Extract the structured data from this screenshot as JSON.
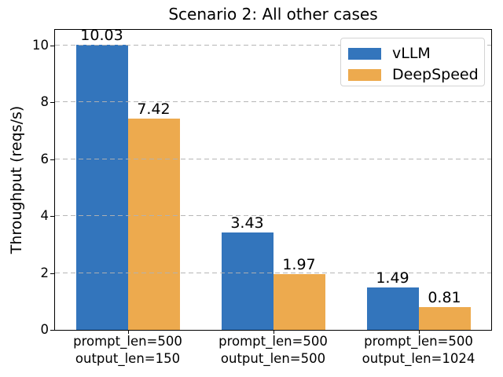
{
  "chart_data": {
    "type": "bar",
    "title": "Scenario 2: All other cases",
    "ylabel": "Throughput (reqs/s)",
    "xlabel": "",
    "categories": [
      "prompt_len=500\noutput_len=150",
      "prompt_len=500\noutput_len=500",
      "prompt_len=500\noutput_len=1024"
    ],
    "series": [
      {
        "name": "vLLM",
        "color": "#3375bc",
        "values": [
          10.03,
          3.43,
          1.49
        ]
      },
      {
        "name": "DeepSpeed",
        "color": "#edaa4e",
        "values": [
          7.42,
          1.97,
          0.81
        ]
      }
    ],
    "bar_label_decimals": 2,
    "bar_labels": [
      "10.03",
      "3.43",
      "1.49",
      "7.42",
      "1.97",
      "0.81"
    ],
    "ylim": [
      0,
      10.55
    ],
    "yticks": [
      0,
      2,
      4,
      6,
      8,
      10
    ],
    "grid": {
      "axis": "y",
      "style": "dashed",
      "color": "#b2b2b2"
    },
    "legend": {
      "position": "upper right",
      "entries": [
        "vLLM",
        "DeepSpeed"
      ]
    },
    "spine_color": "#000000"
  }
}
